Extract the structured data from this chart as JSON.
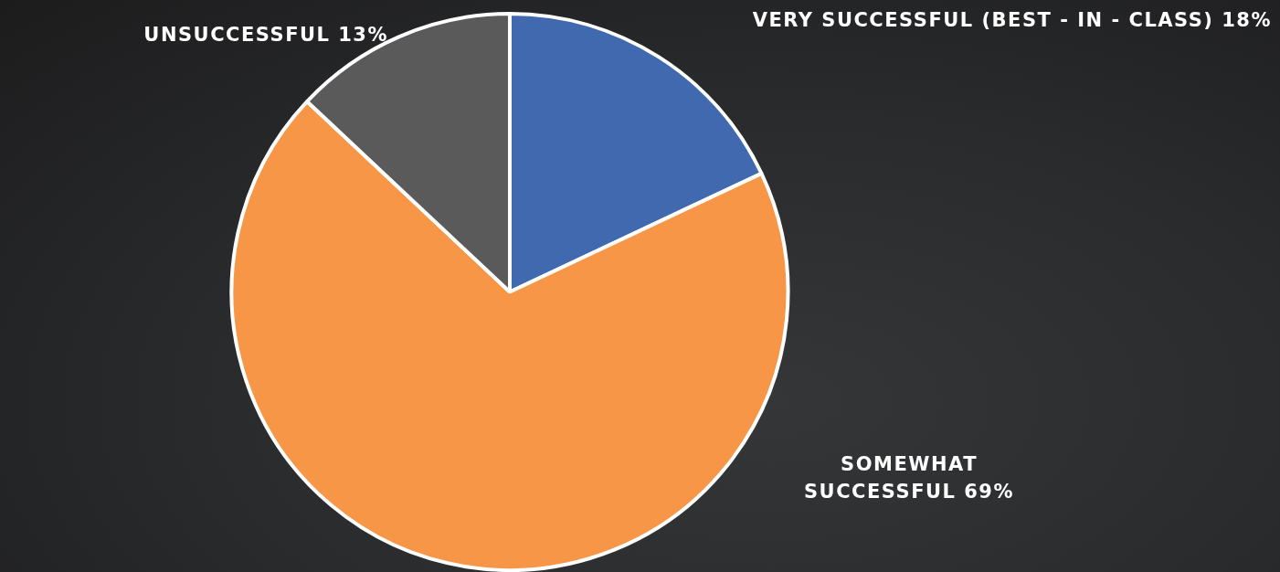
{
  "chart_data": {
    "type": "pie",
    "categories": [
      "VERY SUCCESSFUL (BEST - IN - CLASS)",
      "SOMEWHAT SUCCESSFUL",
      "UNSUCCESSFUL"
    ],
    "values": [
      18,
      69,
      13
    ],
    "value_labels": [
      "18%",
      "69%",
      "13%"
    ],
    "colors": [
      "#4169b0",
      "#f79646",
      "#5a5a5a"
    ],
    "legend": false
  }
}
